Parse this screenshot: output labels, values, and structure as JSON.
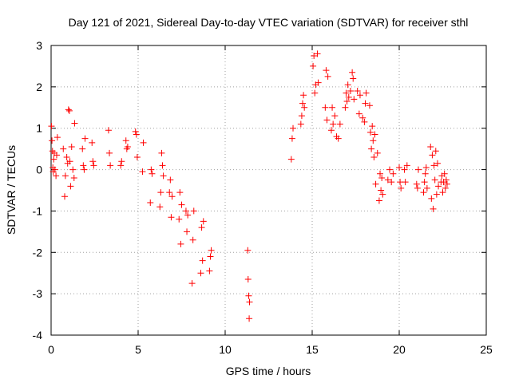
{
  "chart_data": {
    "type": "scatter",
    "title": "Day 121 of 2021, Sidereal Day-to-day VTEC variation (SDTVAR) for receiver sthl",
    "xlabel": "GPS time / hours",
    "ylabel": "SDTVAR / TECUs",
    "xlim": [
      0,
      25
    ],
    "ylim": [
      -4,
      3
    ],
    "x_ticks": [
      0,
      5,
      10,
      15,
      20,
      25
    ],
    "y_ticks": [
      -4,
      -3,
      -2,
      -1,
      0,
      1,
      2,
      3
    ],
    "grid": true,
    "marker": "+",
    "color": "#ff0000",
    "series": [
      {
        "name": "SDTVAR",
        "points": [
          [
            0.02,
            1.05
          ],
          [
            0.05,
            0.7
          ],
          [
            0.08,
            0.45
          ],
          [
            0.1,
            0.05
          ],
          [
            0.12,
            -0.05
          ],
          [
            0.15,
            0.25
          ],
          [
            0.18,
            0.4
          ],
          [
            0.22,
            0.0
          ],
          [
            0.28,
            -0.15
          ],
          [
            0.32,
            0.35
          ],
          [
            0.36,
            0.78
          ],
          [
            0.7,
            0.5
          ],
          [
            0.78,
            -0.65
          ],
          [
            0.82,
            -0.15
          ],
          [
            0.9,
            0.3
          ],
          [
            0.95,
            0.15
          ],
          [
            1.0,
            1.45
          ],
          [
            1.05,
            1.42
          ],
          [
            1.08,
            0.2
          ],
          [
            1.12,
            -0.4
          ],
          [
            1.18,
            0.55
          ],
          [
            1.25,
            0.0
          ],
          [
            1.32,
            -0.2
          ],
          [
            1.35,
            1.12
          ],
          [
            1.8,
            0.5
          ],
          [
            1.85,
            0.1
          ],
          [
            1.9,
            0.0
          ],
          [
            1.95,
            0.75
          ],
          [
            2.35,
            0.65
          ],
          [
            2.4,
            0.2
          ],
          [
            2.45,
            0.1
          ],
          [
            3.3,
            0.95
          ],
          [
            3.35,
            0.4
          ],
          [
            3.4,
            0.1
          ],
          [
            4.0,
            0.1
          ],
          [
            4.05,
            0.2
          ],
          [
            4.3,
            0.7
          ],
          [
            4.35,
            0.5
          ],
          [
            4.4,
            0.55
          ],
          [
            4.85,
            0.92
          ],
          [
            4.9,
            0.85
          ],
          [
            4.95,
            0.3
          ],
          [
            5.25,
            -0.05
          ],
          [
            5.3,
            0.65
          ],
          [
            5.7,
            -0.8
          ],
          [
            5.75,
            0.0
          ],
          [
            5.8,
            -0.1
          ],
          [
            6.25,
            -0.9
          ],
          [
            6.3,
            -0.55
          ],
          [
            6.35,
            0.4
          ],
          [
            6.4,
            0.1
          ],
          [
            6.45,
            -0.15
          ],
          [
            6.8,
            -0.55
          ],
          [
            6.85,
            -0.25
          ],
          [
            6.9,
            -1.15
          ],
          [
            6.95,
            -0.65
          ],
          [
            7.35,
            -1.2
          ],
          [
            7.4,
            -0.55
          ],
          [
            7.45,
            -1.8
          ],
          [
            7.5,
            -0.85
          ],
          [
            7.75,
            -1.0
          ],
          [
            7.8,
            -1.5
          ],
          [
            7.85,
            -1.1
          ],
          [
            8.1,
            -2.75
          ],
          [
            8.15,
            -1.7
          ],
          [
            8.2,
            -1.0
          ],
          [
            8.6,
            -2.5
          ],
          [
            8.65,
            -1.4
          ],
          [
            8.7,
            -2.2
          ],
          [
            8.75,
            -1.25
          ],
          [
            9.1,
            -2.45
          ],
          [
            9.15,
            -2.1
          ],
          [
            9.2,
            -1.95
          ],
          [
            11.3,
            -1.95
          ],
          [
            11.32,
            -2.65
          ],
          [
            11.35,
            -3.05
          ],
          [
            11.38,
            -3.6
          ],
          [
            11.4,
            -3.2
          ],
          [
            13.8,
            0.25
          ],
          [
            13.85,
            0.75
          ],
          [
            13.9,
            1.0
          ],
          [
            14.35,
            1.1
          ],
          [
            14.4,
            1.3
          ],
          [
            14.45,
            1.6
          ],
          [
            14.5,
            1.8
          ],
          [
            14.55,
            1.5
          ],
          [
            15.05,
            2.5
          ],
          [
            15.1,
            2.75
          ],
          [
            15.15,
            1.85
          ],
          [
            15.2,
            2.05
          ],
          [
            15.3,
            2.8
          ],
          [
            15.35,
            2.1
          ],
          [
            15.75,
            1.5
          ],
          [
            15.8,
            2.4
          ],
          [
            15.85,
            1.2
          ],
          [
            15.9,
            2.25
          ],
          [
            16.1,
            0.95
          ],
          [
            16.15,
            1.5
          ],
          [
            16.2,
            1.1
          ],
          [
            16.3,
            1.3
          ],
          [
            16.4,
            0.8
          ],
          [
            16.5,
            0.75
          ],
          [
            16.6,
            1.1
          ],
          [
            16.9,
            1.5
          ],
          [
            16.95,
            1.85
          ],
          [
            17.0,
            1.65
          ],
          [
            17.05,
            2.05
          ],
          [
            17.1,
            1.75
          ],
          [
            17.2,
            1.9
          ],
          [
            17.3,
            2.35
          ],
          [
            17.35,
            2.2
          ],
          [
            17.4,
            1.7
          ],
          [
            17.6,
            1.9
          ],
          [
            17.7,
            1.35
          ],
          [
            17.75,
            1.8
          ],
          [
            17.9,
            1.25
          ],
          [
            18.0,
            1.15
          ],
          [
            18.05,
            1.6
          ],
          [
            18.1,
            1.85
          ],
          [
            18.3,
            1.55
          ],
          [
            18.35,
            0.9
          ],
          [
            18.4,
            0.5
          ],
          [
            18.45,
            1.05
          ],
          [
            18.5,
            0.7
          ],
          [
            18.55,
            0.3
          ],
          [
            18.6,
            0.85
          ],
          [
            18.65,
            -0.35
          ],
          [
            18.75,
            0.4
          ],
          [
            18.85,
            -0.75
          ],
          [
            18.9,
            -0.1
          ],
          [
            18.95,
            -0.5
          ],
          [
            19.0,
            -0.2
          ],
          [
            19.05,
            -0.6
          ],
          [
            19.35,
            -0.25
          ],
          [
            19.45,
            0.0
          ],
          [
            19.55,
            -0.3
          ],
          [
            19.65,
            -0.1
          ],
          [
            20.0,
            0.05
          ],
          [
            20.05,
            -0.3
          ],
          [
            20.1,
            -0.45
          ],
          [
            20.3,
            0.0
          ],
          [
            20.35,
            -0.3
          ],
          [
            20.45,
            0.1
          ],
          [
            21.0,
            -0.35
          ],
          [
            21.05,
            -0.45
          ],
          [
            21.1,
            0.0
          ],
          [
            21.4,
            -0.55
          ],
          [
            21.45,
            -0.3
          ],
          [
            21.5,
            -0.1
          ],
          [
            21.55,
            0.05
          ],
          [
            21.6,
            -0.45
          ],
          [
            21.8,
            0.55
          ],
          [
            21.85,
            -0.7
          ],
          [
            21.9,
            0.35
          ],
          [
            21.95,
            -0.95
          ],
          [
            22.0,
            0.1
          ],
          [
            22.05,
            -0.25
          ],
          [
            22.1,
            0.45
          ],
          [
            22.15,
            -0.6
          ],
          [
            22.2,
            0.15
          ],
          [
            22.25,
            -0.4
          ],
          [
            22.4,
            -0.3
          ],
          [
            22.45,
            -0.15
          ],
          [
            22.5,
            -0.55
          ],
          [
            22.55,
            -0.3
          ],
          [
            22.6,
            -0.1
          ],
          [
            22.65,
            -0.45
          ],
          [
            22.7,
            -0.25
          ],
          [
            22.75,
            -0.35
          ]
        ]
      }
    ]
  }
}
